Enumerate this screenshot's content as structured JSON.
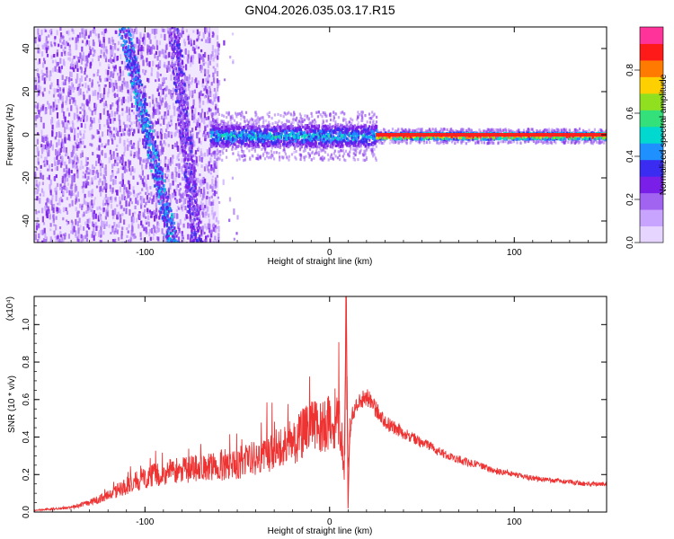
{
  "title": "GN04.2026.035.03.17.R15",
  "colors": {
    "snr_line": "#ee3333",
    "spectrogram_cmap": [
      "#e6d6ff",
      "#c9a4ff",
      "#a064f0",
      "#7a1fe8",
      "#3a2cf0",
      "#1e90ff",
      "#00d8d0",
      "#33e07a",
      "#90e020",
      "#ffd000",
      "#ff7a00",
      "#ff1a1a",
      "#ff3399"
    ]
  },
  "chart_data": [
    {
      "type": "heatmap",
      "xlabel": "Height of straight line (km)",
      "ylabel": "Frequency (Hz)",
      "xlim": [
        -160,
        150
      ],
      "ylim": [
        -50,
        50
      ],
      "xticks": [
        -100,
        0,
        100
      ],
      "yticks": [
        -40,
        -20,
        0,
        20,
        40
      ],
      "colorbar": {
        "label": "Normalized spectral amplitude",
        "range": [
          0.0,
          1.0
        ],
        "ticks": [
          0.0,
          0.2,
          0.4,
          0.6,
          0.8
        ]
      },
      "features": [
        {
          "kind": "diffuse-noise",
          "x_range": [
            -160,
            -60
          ],
          "freq_range": [
            -50,
            50
          ],
          "level": 0.15
        },
        {
          "kind": "slanted-line",
          "from": [
            -112,
            50
          ],
          "to": [
            -85,
            -50
          ],
          "level": 0.3
        },
        {
          "kind": "slanted-line",
          "from": [
            -85,
            50
          ],
          "to": [
            -72,
            -50
          ],
          "level": 0.2
        },
        {
          "kind": "narrow-band",
          "x_range": [
            -65,
            25
          ],
          "center_freq": 0,
          "half_width": 5,
          "level": 0.45
        },
        {
          "kind": "narrow-band",
          "x_range": [
            25,
            150
          ],
          "center_freq": 0,
          "half_width": 1.5,
          "level": 0.9
        }
      ]
    },
    {
      "type": "line",
      "xlabel": "Height of straight line (km)",
      "ylabel": "SNR (10 * v/v)",
      "y_multiplier": "(x10⁴)",
      "xlim": [
        -160,
        150
      ],
      "ylim": [
        0,
        1.15
      ],
      "xticks": [
        -100,
        0,
        100
      ],
      "yticks": [
        0.0,
        0.2,
        0.4,
        0.6,
        0.8,
        1.0
      ],
      "series": [
        {
          "x": [
            -160,
            -140,
            -130,
            -120,
            -110,
            -100,
            -90,
            -80,
            -70,
            -60,
            -50,
            -40,
            -30,
            -20,
            -10,
            0,
            5,
            8,
            9,
            10,
            12,
            15,
            20,
            25,
            30,
            40,
            50,
            60,
            70,
            80,
            90,
            100,
            110,
            120,
            130,
            140,
            150
          ],
          "y": [
            0.01,
            0.03,
            0.06,
            0.11,
            0.17,
            0.22,
            0.25,
            0.27,
            0.28,
            0.3,
            0.32,
            0.35,
            0.4,
            0.46,
            0.54,
            0.58,
            0.62,
            0.3,
            1.15,
            0.25,
            0.52,
            0.58,
            0.62,
            0.55,
            0.48,
            0.42,
            0.37,
            0.32,
            0.28,
            0.25,
            0.22,
            0.2,
            0.18,
            0.17,
            0.16,
            0.15,
            0.15
          ]
        }
      ]
    }
  ]
}
